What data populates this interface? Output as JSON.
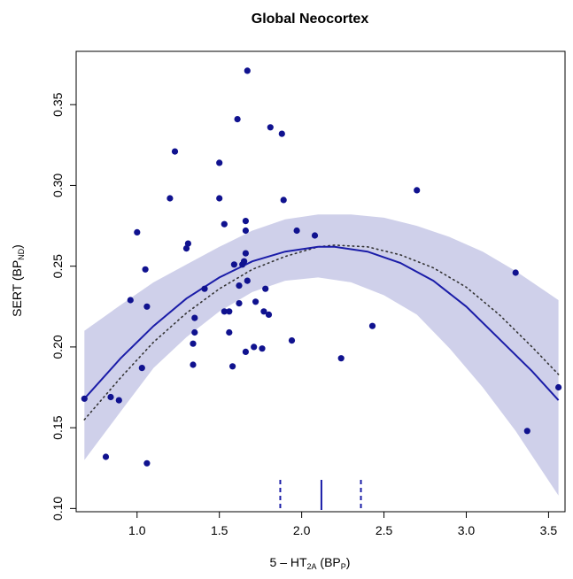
{
  "chart_data": {
    "type": "scatter",
    "title": "Global Neocortex",
    "xlabel": {
      "main": "5 – HT",
      "sub": "2A",
      "paren_open": " (BP",
      "paren_sub": "P",
      "paren_close": ")"
    },
    "ylabel": {
      "main": "SERT (BP",
      "sub": "ND",
      "close": ")"
    },
    "xlim": [
      0.63,
      3.6
    ],
    "ylim": [
      0.098,
      0.383
    ],
    "x_ticks": [
      1.0,
      1.5,
      2.0,
      2.5,
      3.0,
      3.5
    ],
    "x_tick_labels": [
      "1.0",
      "1.5",
      "2.0",
      "2.5",
      "3.0",
      "3.5"
    ],
    "y_ticks": [
      0.1,
      0.15,
      0.2,
      0.25,
      0.3,
      0.35
    ],
    "y_tick_labels": [
      "0.10",
      "0.15",
      "0.20",
      "0.25",
      "0.30",
      "0.35"
    ],
    "grid": false,
    "legend": "none",
    "colors": {
      "points": "#10128f",
      "fit": "#1a1ca8",
      "band": "#cfd0ea",
      "dotted": "#333333"
    },
    "points": [
      [
        0.68,
        0.168
      ],
      [
        0.81,
        0.132
      ],
      [
        0.84,
        0.169
      ],
      [
        0.89,
        0.167
      ],
      [
        0.96,
        0.229
      ],
      [
        1.0,
        0.271
      ],
      [
        1.03,
        0.187
      ],
      [
        1.05,
        0.248
      ],
      [
        1.06,
        0.225
      ],
      [
        1.06,
        0.128
      ],
      [
        1.2,
        0.292
      ],
      [
        1.23,
        0.321
      ],
      [
        1.3,
        0.261
      ],
      [
        1.31,
        0.264
      ],
      [
        1.34,
        0.189
      ],
      [
        1.34,
        0.202
      ],
      [
        1.35,
        0.218
      ],
      [
        1.35,
        0.209
      ],
      [
        1.41,
        0.236
      ],
      [
        1.5,
        0.314
      ],
      [
        1.5,
        0.292
      ],
      [
        1.53,
        0.276
      ],
      [
        1.53,
        0.222
      ],
      [
        1.56,
        0.222
      ],
      [
        1.56,
        0.209
      ],
      [
        1.58,
        0.188
      ],
      [
        1.59,
        0.251
      ],
      [
        1.61,
        0.341
      ],
      [
        1.62,
        0.238
      ],
      [
        1.62,
        0.227
      ],
      [
        1.64,
        0.251
      ],
      [
        1.65,
        0.253
      ],
      [
        1.66,
        0.278
      ],
      [
        1.66,
        0.272
      ],
      [
        1.66,
        0.258
      ],
      [
        1.67,
        0.371
      ],
      [
        1.67,
        0.241
      ],
      [
        1.66,
        0.197
      ],
      [
        1.71,
        0.2
      ],
      [
        1.72,
        0.228
      ],
      [
        1.76,
        0.199
      ],
      [
        1.77,
        0.222
      ],
      [
        1.78,
        0.236
      ],
      [
        1.8,
        0.22
      ],
      [
        1.81,
        0.336
      ],
      [
        1.88,
        0.332
      ],
      [
        1.89,
        0.291
      ],
      [
        1.94,
        0.204
      ],
      [
        1.97,
        0.272
      ],
      [
        2.08,
        0.269
      ],
      [
        2.24,
        0.193
      ],
      [
        2.43,
        0.213
      ],
      [
        2.7,
        0.297
      ],
      [
        3.3,
        0.246
      ],
      [
        3.37,
        0.148
      ],
      [
        3.56,
        0.175
      ]
    ],
    "fit_curve": [
      [
        0.68,
        0.168
      ],
      [
        0.9,
        0.193
      ],
      [
        1.1,
        0.213
      ],
      [
        1.3,
        0.23
      ],
      [
        1.5,
        0.243
      ],
      [
        1.7,
        0.253
      ],
      [
        1.9,
        0.259
      ],
      [
        2.1,
        0.262
      ],
      [
        2.2,
        0.262
      ],
      [
        2.4,
        0.259
      ],
      [
        2.6,
        0.252
      ],
      [
        2.8,
        0.241
      ],
      [
        3.0,
        0.225
      ],
      [
        3.2,
        0.205
      ],
      [
        3.4,
        0.185
      ],
      [
        3.56,
        0.167
      ]
    ],
    "dotted_curve": [
      [
        0.68,
        0.155
      ],
      [
        0.9,
        0.181
      ],
      [
        1.1,
        0.203
      ],
      [
        1.3,
        0.221
      ],
      [
        1.5,
        0.236
      ],
      [
        1.7,
        0.248
      ],
      [
        1.9,
        0.256
      ],
      [
        2.1,
        0.262
      ],
      [
        2.2,
        0.263
      ],
      [
        2.4,
        0.262
      ],
      [
        2.6,
        0.257
      ],
      [
        2.8,
        0.249
      ],
      [
        3.0,
        0.237
      ],
      [
        3.2,
        0.22
      ],
      [
        3.4,
        0.2
      ],
      [
        3.56,
        0.183
      ]
    ],
    "band_upper": [
      [
        0.68,
        0.21
      ],
      [
        0.9,
        0.226
      ],
      [
        1.1,
        0.24
      ],
      [
        1.3,
        0.251
      ],
      [
        1.5,
        0.262
      ],
      [
        1.7,
        0.272
      ],
      [
        1.9,
        0.279
      ],
      [
        2.1,
        0.282
      ],
      [
        2.3,
        0.282
      ],
      [
        2.5,
        0.28
      ],
      [
        2.7,
        0.275
      ],
      [
        2.9,
        0.268
      ],
      [
        3.1,
        0.259
      ],
      [
        3.3,
        0.247
      ],
      [
        3.56,
        0.229
      ]
    ],
    "band_lower": [
      [
        0.68,
        0.13
      ],
      [
        0.9,
        0.16
      ],
      [
        1.1,
        0.187
      ],
      [
        1.3,
        0.206
      ],
      [
        1.5,
        0.222
      ],
      [
        1.7,
        0.234
      ],
      [
        1.9,
        0.241
      ],
      [
        2.1,
        0.243
      ],
      [
        2.3,
        0.24
      ],
      [
        2.5,
        0.232
      ],
      [
        2.7,
        0.22
      ],
      [
        2.9,
        0.199
      ],
      [
        3.1,
        0.175
      ],
      [
        3.3,
        0.148
      ],
      [
        3.56,
        0.108
      ]
    ],
    "rug_markers": [
      {
        "x": 1.87,
        "style": "dashed"
      },
      {
        "x": 2.12,
        "style": "solid"
      },
      {
        "x": 2.36,
        "style": "dashed"
      }
    ]
  }
}
